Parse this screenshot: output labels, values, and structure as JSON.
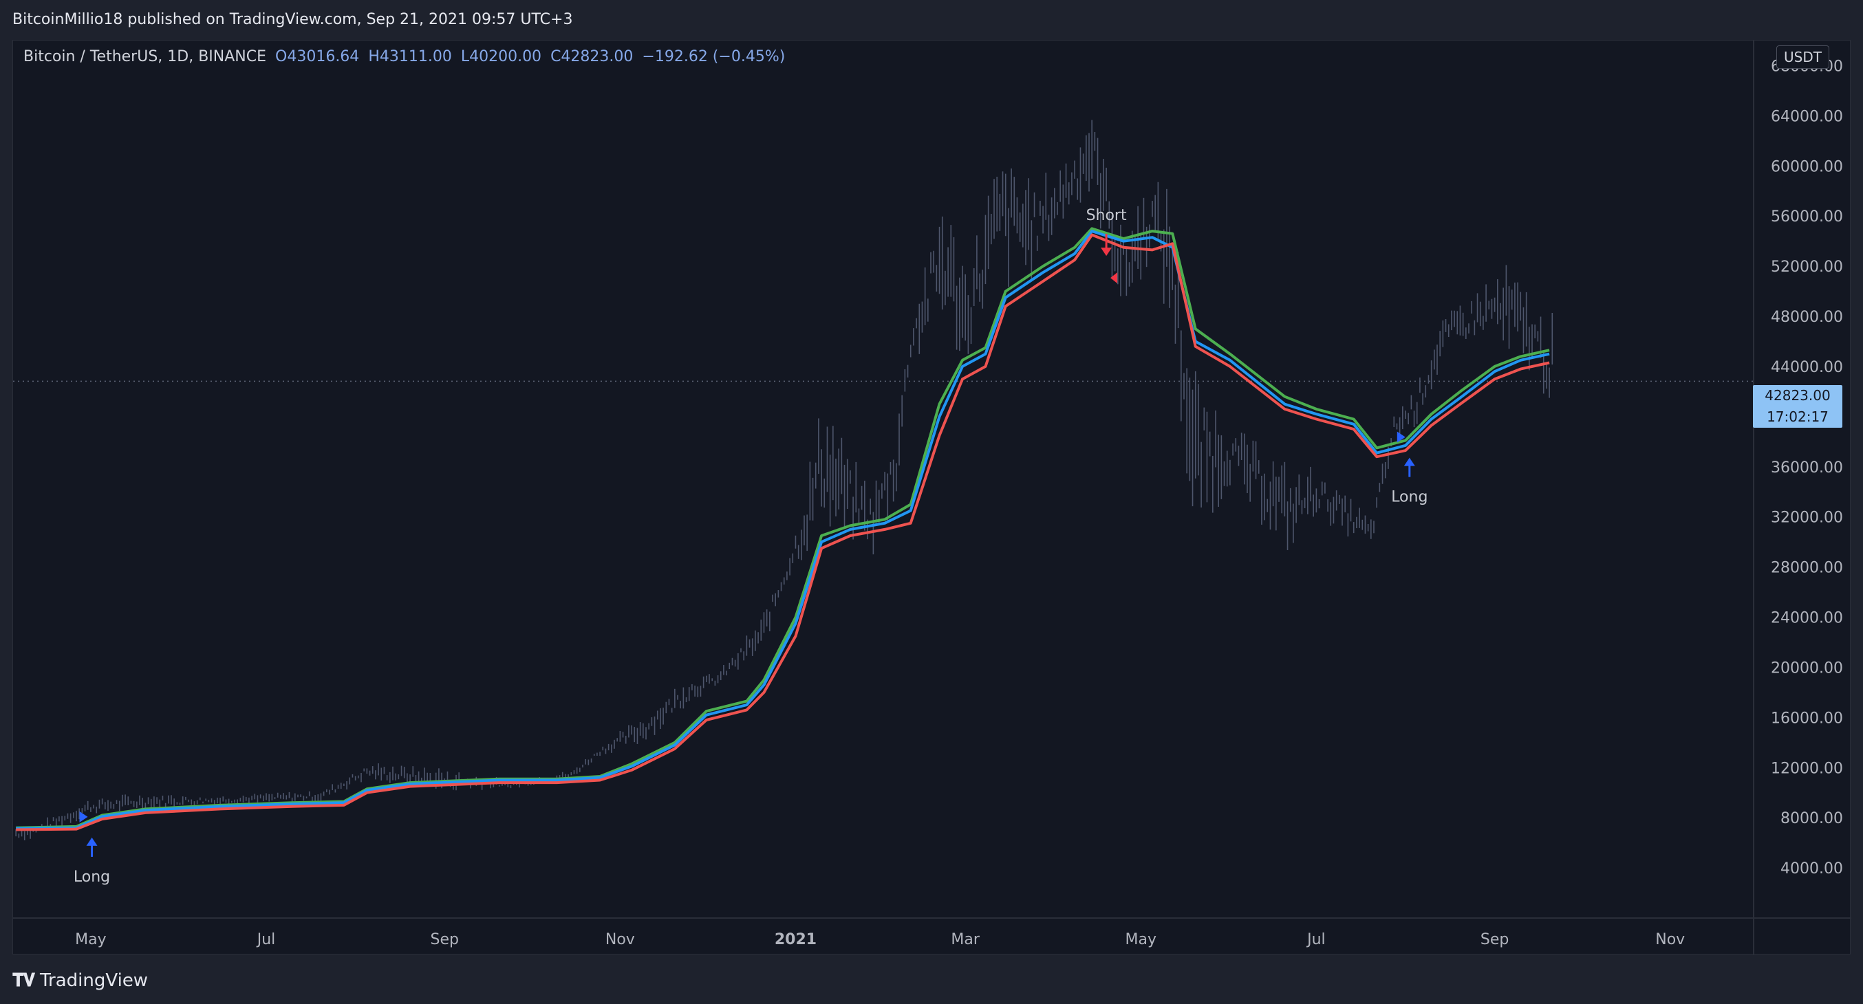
{
  "header": {
    "published": "BitcoinMillio18 published on TradingView.com, Sep 21, 2021 09:57 UTC+3"
  },
  "legend": {
    "symbol": "Bitcoin / TetherUS, 1D, BINANCE",
    "open": "O43016.64",
    "high": "H43111.00",
    "low": "L40200.00",
    "close": "C42823.00",
    "change": "−192.62 (−0.45%)"
  },
  "currency": "USDT",
  "last_price": {
    "value": "42823.00",
    "countdown": "17:02:17"
  },
  "footer": {
    "brand": "TradingView",
    "logo": "tradingview-logo"
  },
  "colors": {
    "background": "#131722",
    "upper_band": "#4caf50",
    "middle_band": "#2196f3",
    "lower_band": "#ef5350",
    "candles": "#5d667f",
    "long_signal": "#2962ff",
    "short_signal": "#f23645"
  },
  "chart_data": {
    "type": "line",
    "title": "",
    "xlabel": "",
    "ylabel": "",
    "x_ticks": [
      "May",
      "Jul",
      "Sep",
      "Nov",
      "2021",
      "Mar",
      "May",
      "Jul",
      "Sep",
      "Nov"
    ],
    "y_ticks": [
      "4000.00",
      "8000.00",
      "12000.00",
      "16000.00",
      "20000.00",
      "24000.00",
      "28000.00",
      "32000.00",
      "36000.00",
      "40000.00",
      "44000.00",
      "48000.00",
      "52000.00",
      "56000.00",
      "60000.00",
      "64000.00",
      "68000.00"
    ],
    "ylim": [
      0,
      70000
    ],
    "xlim": [
      "2020-04-04",
      "2021-11-30"
    ],
    "grid": false,
    "last_price_line": 42823,
    "price_range_bars": {
      "x": [
        "2020-04-10",
        "2020-05-01",
        "2020-05-20",
        "2020-06-15",
        "2020-07-20",
        "2020-08-05",
        "2020-09-01",
        "2020-09-25",
        "2020-10-15",
        "2020-10-25",
        "2020-11-10",
        "2020-11-25",
        "2020-12-05",
        "2020-12-20",
        "2020-12-28",
        "2021-01-05",
        "2021-01-10",
        "2021-01-20",
        "2021-01-28",
        "2021-02-05",
        "2021-02-10",
        "2021-02-21",
        "2021-03-01",
        "2021-03-13",
        "2021-03-25",
        "2021-04-01",
        "2021-04-14",
        "2021-04-25",
        "2021-05-05",
        "2021-05-12",
        "2021-05-19",
        "2021-06-01",
        "2021-06-22",
        "2021-07-01",
        "2021-07-20",
        "2021-07-28",
        "2021-08-05",
        "2021-08-14",
        "2021-08-23",
        "2021-09-01",
        "2021-09-07",
        "2021-09-15",
        "2021-09-20"
      ],
      "high": [
        7400,
        9600,
        10000,
        9800,
        10200,
        12400,
        12000,
        11000,
        11800,
        13700,
        16500,
        19400,
        19600,
        24000,
        28400,
        35000,
        42000,
        37000,
        34500,
        40000,
        48000,
        58300,
        52000,
        61800,
        59000,
        59800,
        64800,
        56000,
        59000,
        58000,
        44000,
        40000,
        36000,
        36000,
        32000,
        40500,
        43000,
        48000,
        50000,
        51000,
        52900,
        48500,
        48300
      ],
      "low": [
        6200,
        8200,
        8600,
        9000,
        9300,
        11000,
        10000,
        10300,
        11000,
        12900,
        14000,
        17000,
        18500,
        21000,
        26000,
        29000,
        31000,
        30000,
        29000,
        33000,
        44000,
        47000,
        44000,
        50000,
        51000,
        54000,
        58000,
        47000,
        53000,
        46000,
        30000,
        34000,
        29000,
        32000,
        29300,
        37500,
        39000,
        44500,
        45500,
        46500,
        42800,
        44000,
        40200
      ]
    },
    "series": [
      {
        "name": "",
        "color": "#4caf50",
        "x": [
          "2020-04-05",
          "2020-04-26",
          "2020-05-05",
          "2020-05-20",
          "2020-06-15",
          "2020-07-10",
          "2020-07-28",
          "2020-08-05",
          "2020-08-20",
          "2020-09-20",
          "2020-10-10",
          "2020-10-25",
          "2020-11-05",
          "2020-11-20",
          "2020-12-01",
          "2020-12-15",
          "2020-12-21",
          "2021-01-01",
          "2021-01-10",
          "2021-01-20",
          "2021-02-01",
          "2021-02-10",
          "2021-02-20",
          "2021-02-28",
          "2021-03-08",
          "2021-03-15",
          "2021-03-28",
          "2021-04-08",
          "2021-04-14",
          "2021-04-25",
          "2021-05-05",
          "2021-05-12",
          "2021-05-20",
          "2021-06-01",
          "2021-06-20",
          "2021-07-01",
          "2021-07-14",
          "2021-07-22",
          "2021-08-01",
          "2021-08-10",
          "2021-08-20",
          "2021-09-01",
          "2021-09-10",
          "2021-09-20"
        ],
        "y": [
          7200,
          7300,
          8200,
          8700,
          9000,
          9200,
          9300,
          10300,
          10800,
          11100,
          11100,
          11300,
          12300,
          14000,
          16500,
          17300,
          19000,
          24000,
          30500,
          31300,
          31800,
          33000,
          41000,
          44500,
          45500,
          50000,
          52000,
          53500,
          55000,
          54200,
          54800,
          54600,
          47000,
          45000,
          41600,
          40600,
          39800,
          37500,
          38100,
          40200,
          42000,
          44000,
          44800,
          45300
        ]
      },
      {
        "name": "",
        "color": "#2196f3",
        "x": [
          "2020-04-05",
          "2020-04-26",
          "2020-05-05",
          "2020-05-20",
          "2020-06-15",
          "2020-07-10",
          "2020-07-28",
          "2020-08-05",
          "2020-08-20",
          "2020-09-20",
          "2020-10-10",
          "2020-10-25",
          "2020-11-05",
          "2020-11-20",
          "2020-12-01",
          "2020-12-15",
          "2020-12-21",
          "2021-01-01",
          "2021-01-10",
          "2021-01-20",
          "2021-02-01",
          "2021-02-10",
          "2021-02-20",
          "2021-02-28",
          "2021-03-08",
          "2021-03-15",
          "2021-03-28",
          "2021-04-08",
          "2021-04-14",
          "2021-04-25",
          "2021-05-05",
          "2021-05-12",
          "2021-05-20",
          "2021-06-01",
          "2021-06-20",
          "2021-07-01",
          "2021-07-14",
          "2021-07-22",
          "2021-08-01",
          "2021-08-10",
          "2021-08-20",
          "2021-09-01",
          "2021-09-10",
          "2021-09-20"
        ],
        "y": [
          7150,
          7200,
          8100,
          8600,
          8900,
          9100,
          9200,
          10200,
          10700,
          11000,
          11000,
          11200,
          12100,
          13800,
          16200,
          17000,
          18600,
          23500,
          30000,
          31000,
          31500,
          32500,
          40000,
          44000,
          45000,
          49500,
          51500,
          53000,
          54800,
          54000,
          54300,
          53500,
          46000,
          44500,
          41000,
          40200,
          39400,
          37100,
          37700,
          39800,
          41500,
          43600,
          44500,
          45000
        ]
      },
      {
        "name": "",
        "color": "#ef5350",
        "x": [
          "2020-04-05",
          "2020-04-26",
          "2020-05-05",
          "2020-05-20",
          "2020-06-15",
          "2020-07-10",
          "2020-07-28",
          "2020-08-05",
          "2020-08-20",
          "2020-09-20",
          "2020-10-10",
          "2020-10-25",
          "2020-11-05",
          "2020-11-20",
          "2020-12-01",
          "2020-12-15",
          "2020-12-21",
          "2021-01-01",
          "2021-01-10",
          "2021-01-20",
          "2021-02-01",
          "2021-02-10",
          "2021-02-20",
          "2021-02-28",
          "2021-03-08",
          "2021-03-15",
          "2021-03-28",
          "2021-04-08",
          "2021-04-14",
          "2021-04-25",
          "2021-05-05",
          "2021-05-12",
          "2021-05-20",
          "2021-06-01",
          "2021-06-20",
          "2021-07-01",
          "2021-07-14",
          "2021-07-22",
          "2021-08-01",
          "2021-08-10",
          "2021-08-20",
          "2021-09-01",
          "2021-09-10",
          "2021-09-20"
        ],
        "y": [
          7050,
          7100,
          7900,
          8400,
          8700,
          8900,
          9000,
          10000,
          10500,
          10800,
          10800,
          11000,
          11800,
          13500,
          15800,
          16600,
          18000,
          22500,
          29500,
          30500,
          31000,
          31500,
          38500,
          43000,
          44000,
          48800,
          50800,
          52500,
          54500,
          53500,
          53300,
          53800,
          45600,
          44000,
          40600,
          39800,
          39000,
          36800,
          37300,
          39300,
          41000,
          43000,
          43800,
          44300
        ]
      }
    ],
    "signals": [
      {
        "label": "Long",
        "x": "2020-04-29",
        "y": 7300,
        "direction": "up"
      },
      {
        "label": "Short",
        "x": "2021-04-19",
        "y": 54800,
        "direction": "down"
      },
      {
        "label": "Long",
        "x": "2021-07-31",
        "y": 37600,
        "direction": "up"
      }
    ]
  }
}
